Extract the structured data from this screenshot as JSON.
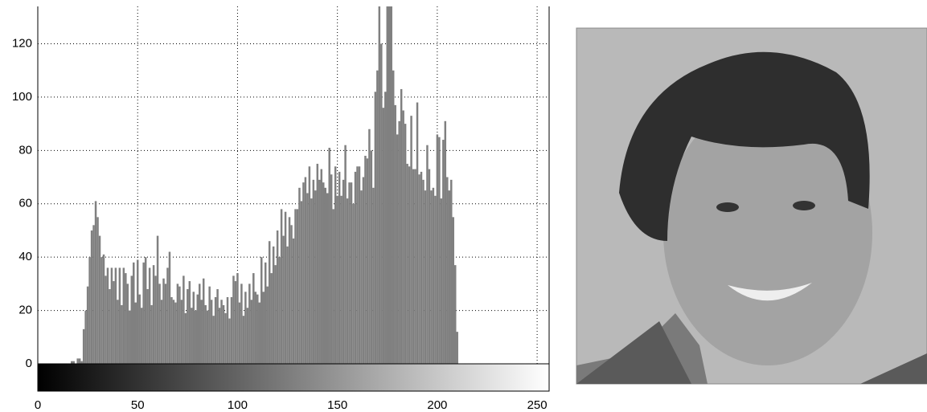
{
  "chart_data": {
    "type": "bar",
    "x": [
      0,
      1,
      2,
      3,
      4,
      5,
      6,
      7,
      8,
      9,
      10,
      11,
      12,
      13,
      14,
      15,
      16,
      17,
      18,
      19,
      20,
      21,
      22,
      23,
      24,
      25,
      26,
      27,
      28,
      29,
      30,
      31,
      32,
      33,
      34,
      35,
      36,
      37,
      38,
      39,
      40,
      41,
      42,
      43,
      44,
      45,
      46,
      47,
      48,
      49,
      50,
      51,
      52,
      53,
      54,
      55,
      56,
      57,
      58,
      59,
      60,
      61,
      62,
      63,
      64,
      65,
      66,
      67,
      68,
      69,
      70,
      71,
      72,
      73,
      74,
      75,
      76,
      77,
      78,
      79,
      80,
      81,
      82,
      83,
      84,
      85,
      86,
      87,
      88,
      89,
      90,
      91,
      92,
      93,
      94,
      95,
      96,
      97,
      98,
      99,
      100,
      101,
      102,
      103,
      104,
      105,
      106,
      107,
      108,
      109,
      110,
      111,
      112,
      113,
      114,
      115,
      116,
      117,
      118,
      119,
      120,
      121,
      122,
      123,
      124,
      125,
      126,
      127,
      128,
      129,
      130,
      131,
      132,
      133,
      134,
      135,
      136,
      137,
      138,
      139,
      140,
      141,
      142,
      143,
      144,
      145,
      146,
      147,
      148,
      149,
      150,
      151,
      152,
      153,
      154,
      155,
      156,
      157,
      158,
      159,
      160,
      161,
      162,
      163,
      164,
      165,
      166,
      167,
      168,
      169,
      170,
      171,
      172,
      173,
      174,
      175,
      176,
      177,
      178,
      179,
      180,
      181,
      182,
      183,
      184,
      185,
      186,
      187,
      188,
      189,
      190,
      191,
      192,
      193,
      194,
      195,
      196,
      197,
      198,
      199,
      200,
      201,
      202,
      203,
      204,
      205,
      206,
      207,
      208,
      209,
      210,
      211,
      212,
      213,
      214,
      215,
      216,
      217,
      218,
      219,
      220,
      221,
      222,
      223,
      224,
      225,
      226,
      227,
      228,
      229,
      230,
      231,
      232,
      233,
      234,
      235,
      236,
      237,
      238,
      239,
      240,
      241,
      242,
      243,
      244,
      245,
      246,
      247,
      248,
      249,
      250,
      251,
      252,
      253,
      254,
      255
    ],
    "values": [
      0,
      0,
      0,
      0,
      0,
      0,
      0,
      0,
      0,
      0,
      0,
      0,
      0,
      0,
      0,
      0,
      0,
      1,
      1,
      0,
      2,
      2,
      1,
      13,
      20,
      29,
      40,
      50,
      52,
      61,
      55,
      48,
      40,
      41,
      33,
      36,
      28,
      36,
      31,
      36,
      24,
      36,
      22,
      36,
      34,
      30,
      20,
      33,
      38,
      23,
      39,
      26,
      21,
      38,
      40,
      28,
      36,
      22,
      37,
      33,
      48,
      30,
      24,
      32,
      30,
      36,
      42,
      25,
      24,
      23,
      30,
      29,
      24,
      33,
      19,
      28,
      31,
      21,
      27,
      20,
      26,
      30,
      24,
      32,
      22,
      20,
      29,
      24,
      18,
      25,
      28,
      21,
      24,
      22,
      19,
      25,
      17,
      25,
      33,
      31,
      34,
      23,
      30,
      18,
      27,
      21,
      30,
      24,
      34,
      27,
      26,
      23,
      40,
      27,
      38,
      29,
      46,
      34,
      44,
      37,
      50,
      40,
      58,
      48,
      57,
      44,
      55,
      52,
      47,
      58,
      58,
      66,
      61,
      68,
      70,
      64,
      74,
      62,
      69,
      65,
      75,
      69,
      73,
      68,
      66,
      64,
      81,
      71,
      58,
      74,
      63,
      72,
      63,
      69,
      82,
      62,
      68,
      68,
      60,
      72,
      74,
      74,
      65,
      70,
      78,
      77,
      88,
      80,
      66,
      102,
      110,
      134,
      120,
      96,
      102,
      134,
      134,
      134,
      110,
      97,
      86,
      91,
      103,
      95,
      90,
      75,
      74,
      93,
      73,
      73,
      98,
      71,
      72,
      69,
      65,
      82,
      73,
      65,
      66,
      63,
      86,
      85,
      62,
      84,
      91,
      70,
      65,
      69,
      55,
      37,
      12,
      0,
      0,
      0,
      0,
      0,
      0,
      0,
      0,
      0,
      0,
      0,
      0,
      0,
      0,
      0,
      0,
      0,
      0,
      0,
      0,
      0,
      0,
      0,
      0,
      0,
      0,
      0,
      0,
      0,
      0,
      0,
      0,
      0,
      0,
      0,
      0,
      0,
      0,
      0,
      0,
      0,
      0,
      0,
      0,
      0
    ],
    "color": "#808080",
    "xlim": [
      0,
      256
    ],
    "ylim": [
      0,
      134
    ],
    "xticks": [
      0,
      50,
      100,
      150,
      200,
      250
    ],
    "yticks": [
      0,
      20,
      40,
      60,
      80,
      100,
      120
    ],
    "grid": true
  }
}
